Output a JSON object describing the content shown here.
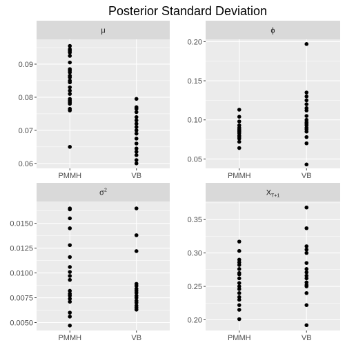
{
  "chart_data": {
    "type": "scatter",
    "title": "Posterior Standard Deviation",
    "categories": [
      "PMMH",
      "VB"
    ],
    "panels": [
      {
        "label": "μ",
        "label_sup": "",
        "label_sub": "",
        "ylim": [
          0.0585,
          0.0975
        ],
        "yticks": [
          0.06,
          0.07,
          0.08,
          0.09
        ],
        "ytick_labels": [
          "0.06",
          "0.07",
          "0.08",
          "0.09"
        ],
        "series": [
          {
            "name": "PMMH",
            "values": [
              0.0955,
              0.0945,
              0.094,
              0.0935,
              0.0925,
              0.0905,
              0.0885,
              0.088,
              0.0875,
              0.0865,
              0.086,
              0.085,
              0.0845,
              0.083,
              0.082,
              0.081,
              0.0795,
              0.079,
              0.0785,
              0.078,
              0.0765,
              0.076,
              0.065
            ]
          },
          {
            "name": "VB",
            "values": [
              0.0795,
              0.077,
              0.0765,
              0.0755,
              0.074,
              0.073,
              0.072,
              0.071,
              0.07,
              0.069,
              0.0675,
              0.066,
              0.0645,
              0.0635,
              0.0625,
              0.061,
              0.06
            ]
          }
        ]
      },
      {
        "label": "ϕ",
        "label_sup": "",
        "label_sub": "",
        "ylim": [
          0.038,
          0.203
        ],
        "yticks": [
          0.05,
          0.1,
          0.15,
          0.2
        ],
        "ytick_labels": [
          "0.05",
          "0.10",
          "0.15",
          "0.20"
        ],
        "series": [
          {
            "name": "PMMH",
            "values": [
              0.113,
              0.104,
              0.098,
              0.093,
              0.09,
              0.088,
              0.086,
              0.085,
              0.083,
              0.08,
              0.078,
              0.076,
              0.072,
              0.064
            ]
          },
          {
            "name": "VB",
            "values": [
              0.197,
              0.135,
              0.13,
              0.125,
              0.12,
              0.115,
              0.112,
              0.105,
              0.1,
              0.097,
              0.095,
              0.093,
              0.09,
              0.088,
              0.085,
              0.078,
              0.07,
              0.043
            ]
          }
        ]
      },
      {
        "label": "σ",
        "label_sup": "2",
        "label_sub": "",
        "ylim": [
          0.0042,
          0.0172
        ],
        "yticks": [
          0.005,
          0.0075,
          0.01,
          0.0125,
          0.015
        ],
        "ytick_labels": [
          "0.0050",
          "0.0075",
          "0.0100",
          "0.0125",
          "0.0150"
        ],
        "series": [
          {
            "name": "PMMH",
            "values": [
              0.0165,
              0.0164,
              0.0155,
              0.0145,
              0.0128,
              0.0116,
              0.0106,
              0.0101,
              0.0097,
              0.0093,
              0.0082,
              0.0079,
              0.0077,
              0.0074,
              0.0071,
              0.006,
              0.0056,
              0.0047
            ]
          },
          {
            "name": "VB",
            "values": [
              0.0165,
              0.0138,
              0.0122,
              0.0089,
              0.0087,
              0.0084,
              0.0082,
              0.008,
              0.0077,
              0.0075,
              0.0072,
              0.007,
              0.0067,
              0.0065,
              0.0063
            ]
          }
        ]
      },
      {
        "label": "X",
        "label_sup": "",
        "label_sub": "T+1",
        "ylim": [
          0.184,
          0.377
        ],
        "yticks": [
          0.2,
          0.25,
          0.3,
          0.35
        ],
        "ytick_labels": [
          "0.20",
          "0.25",
          "0.30",
          "0.35"
        ],
        "series": [
          {
            "name": "PMMH",
            "values": [
              0.317,
              0.303,
              0.29,
              0.286,
              0.282,
              0.276,
              0.27,
              0.268,
              0.262,
              0.255,
              0.25,
              0.246,
              0.24,
              0.234,
              0.23,
              0.222,
              0.215,
              0.201
            ]
          },
          {
            "name": "VB",
            "values": [
              0.368,
              0.337,
              0.31,
              0.305,
              0.3,
              0.285,
              0.276,
              0.271,
              0.266,
              0.262,
              0.256,
              0.252,
              0.25,
              0.24,
              0.222,
              0.192
            ]
          }
        ]
      }
    ]
  }
}
